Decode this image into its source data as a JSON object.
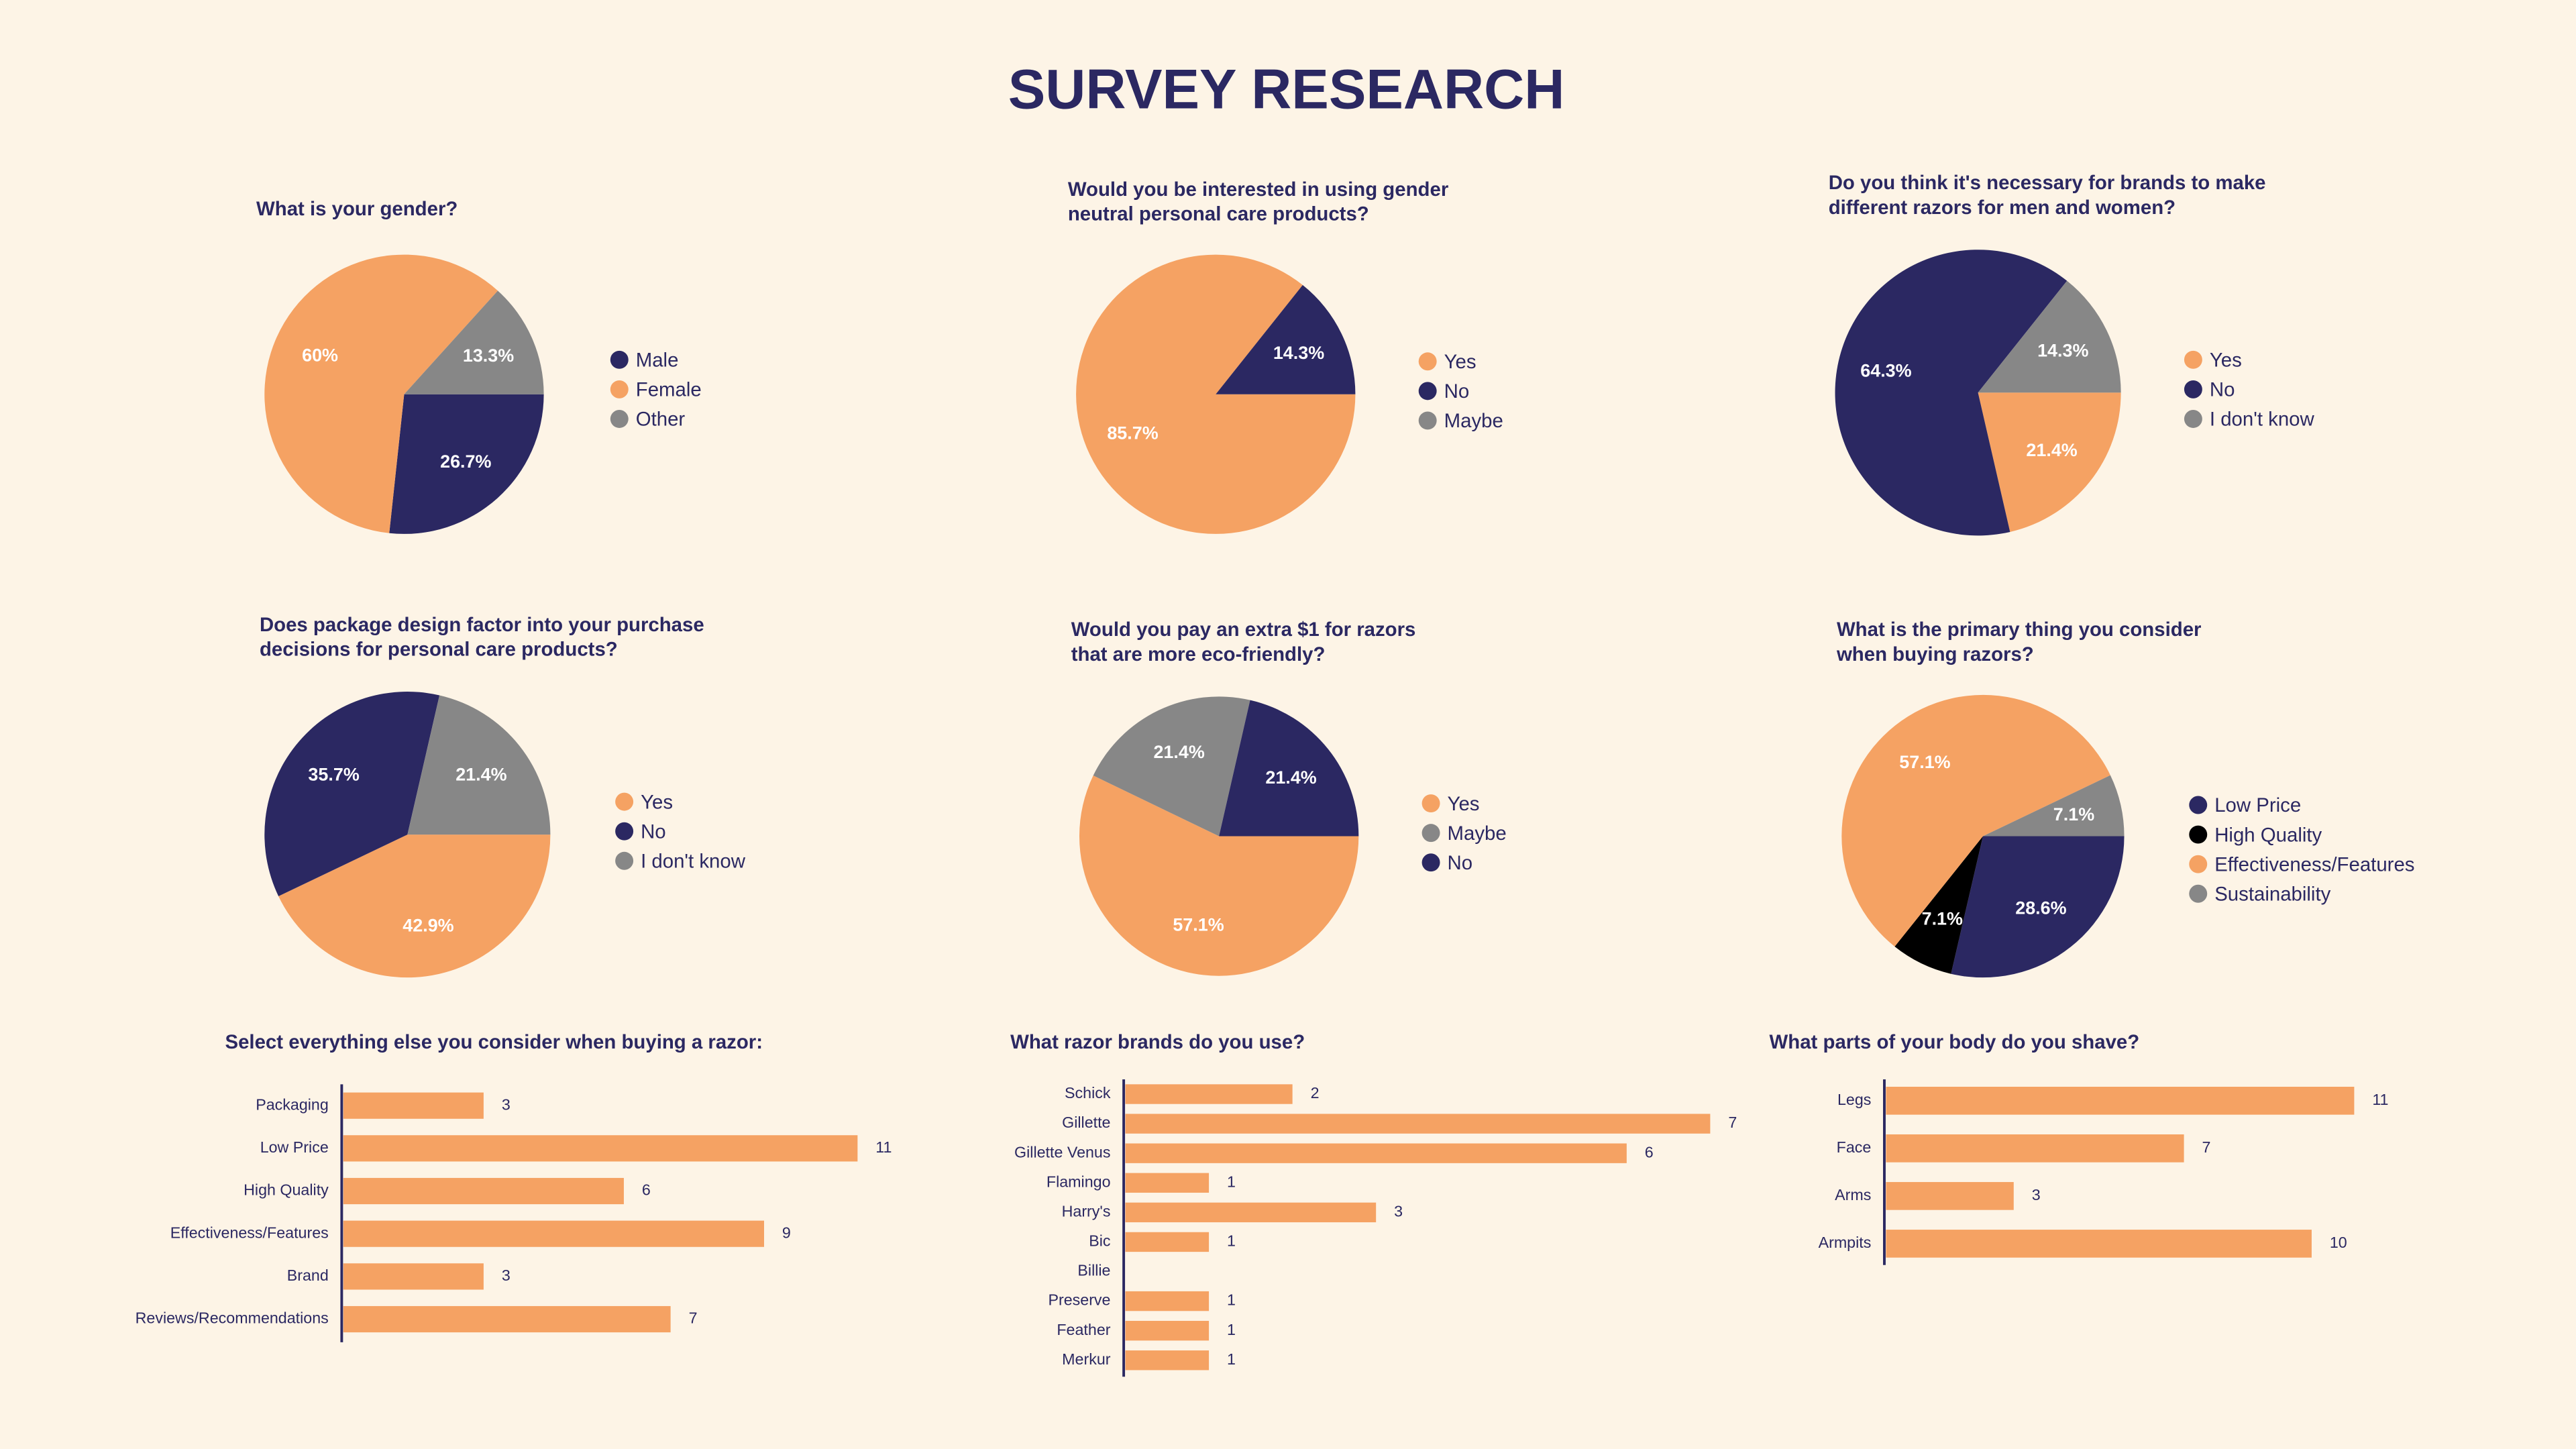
{
  "title": "SURVEY RESEARCH",
  "chart_data": [
    {
      "type": "pie",
      "title": [
        "What is your gender?"
      ],
      "categories": [
        "Male",
        "Female",
        "Other"
      ],
      "values": [
        26.7,
        60,
        13.3
      ],
      "value_labels": [
        "26.7%",
        "60%",
        "13.3%"
      ],
      "colors": [
        "#2b2862",
        "#f5a263",
        "#878787"
      ]
    },
    {
      "type": "pie",
      "title": [
        "Would you be interested in using gender",
        "neutral personal care products?"
      ],
      "categories": [
        "Yes",
        "No",
        "Maybe"
      ],
      "values": [
        85.7,
        14.3,
        0
      ],
      "value_labels": [
        "85.7%",
        "14.3%",
        null
      ],
      "colors": [
        "#f5a263",
        "#2b2862",
        "#878787"
      ]
    },
    {
      "type": "pie",
      "title": [
        "Do you think it's necessary for brands to make",
        "different razors for men and women?"
      ],
      "categories": [
        "Yes",
        "No",
        "I don't know"
      ],
      "values": [
        21.4,
        64.3,
        14.3
      ],
      "value_labels": [
        "21.4%",
        "64.3%",
        "14.3%"
      ],
      "colors": [
        "#f5a263",
        "#2b2862",
        "#878787"
      ]
    },
    {
      "type": "pie",
      "title": [
        "Does package design factor into your purchase",
        "decisions for personal care products?"
      ],
      "categories": [
        "Yes",
        "No",
        "I don't know"
      ],
      "values": [
        42.9,
        35.7,
        21.4
      ],
      "value_labels": [
        "42.9%",
        "35.7%",
        "21.4%"
      ],
      "colors": [
        "#f5a263",
        "#2b2862",
        "#878787"
      ]
    },
    {
      "type": "pie",
      "title": [
        "Would you pay an extra $1 for razors",
        "that are more eco-friendly?"
      ],
      "categories": [
        "Yes",
        "Maybe",
        "No"
      ],
      "values": [
        57.1,
        21.4,
        21.4
      ],
      "value_labels": [
        "57.1%",
        "21.4%",
        "21.4%"
      ],
      "colors": [
        "#f5a263",
        "#878787",
        "#2b2862"
      ]
    },
    {
      "type": "pie",
      "title": [
        "What is the primary thing you consider",
        "when buying razors?"
      ],
      "categories": [
        "Low Price",
        "High Quality",
        "Effectiveness/Features",
        "Sustainability"
      ],
      "values": [
        28.6,
        7.1,
        57.1,
        7.1
      ],
      "value_labels": [
        "28.6%",
        "7.1%",
        "57.1%",
        "7.1%"
      ],
      "colors": [
        "#2b2862",
        "#000000",
        "#f5a263",
        "#878787"
      ]
    },
    {
      "type": "bar",
      "orientation": "horizontal",
      "title": [
        "Select everything else you consider when buying a razor:"
      ],
      "categories": [
        "Packaging",
        "Low Price",
        "High Quality",
        "Effectiveness/Features",
        "Brand",
        "Reviews/Recommendations"
      ],
      "values": [
        3,
        11,
        6,
        9,
        3,
        7
      ],
      "color": "#f5a263"
    },
    {
      "type": "bar",
      "orientation": "horizontal",
      "title": [
        "What razor brands do you use?"
      ],
      "categories": [
        "Schick",
        "Gillette",
        "Gillette Venus",
        "Flamingo",
        "Harry's",
        "Bic",
        "Billie",
        "Preserve",
        "Feather",
        "Merkur"
      ],
      "values": [
        2,
        7,
        6,
        1,
        3,
        1,
        0,
        1,
        1,
        1
      ],
      "value_labels": [
        "2",
        "7",
        "6",
        "1",
        "3",
        "1",
        null,
        "1",
        "1",
        "1"
      ],
      "color": "#f5a263"
    },
    {
      "type": "bar",
      "orientation": "horizontal",
      "title": [
        "What parts of your body do you shave?"
      ],
      "categories": [
        "Legs",
        "Face",
        "Arms",
        "Armpits"
      ],
      "values": [
        11,
        7,
        3,
        10
      ],
      "color": "#f5a263"
    }
  ]
}
